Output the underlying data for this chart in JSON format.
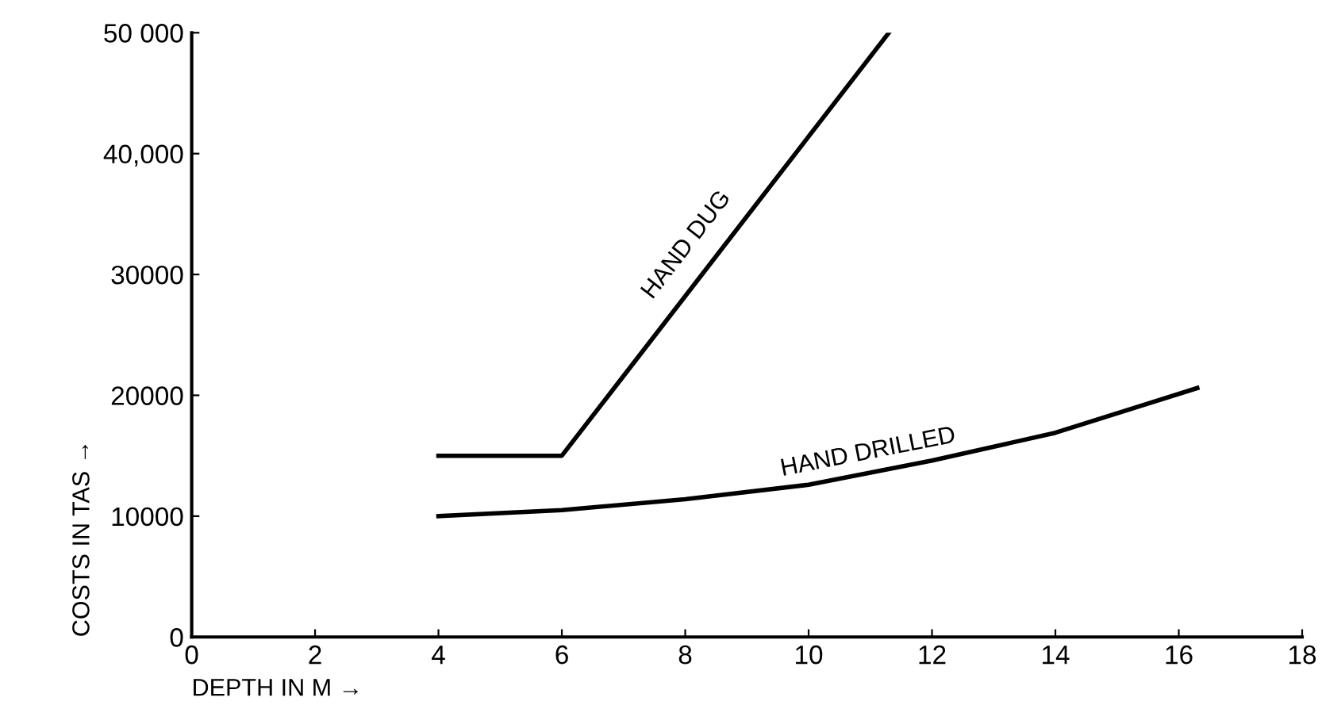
{
  "chart_data": {
    "type": "line",
    "xlabel": "DEPTH IN M →",
    "ylabel": "COSTS IN TAS →",
    "xlim": [
      0,
      18
    ],
    "xticks": [
      0,
      2,
      4,
      6,
      8,
      10,
      12,
      14,
      16,
      18
    ],
    "ylim": [
      0,
      50000
    ],
    "yticks": [
      0,
      {
        "value": 10000,
        "label": "10000"
      },
      {
        "value": 20000,
        "label": "20000"
      },
      {
        "value": 30000,
        "label": "30000"
      },
      {
        "value": 40000,
        "label": "40,000"
      },
      {
        "value": 50000,
        "label": "50 000"
      }
    ],
    "grid": false,
    "legend": false,
    "marker": "none",
    "line_style": "solid",
    "series": [
      {
        "name": "HAND DUG",
        "color": "#000000",
        "x": [
          4,
          6,
          11.3
        ],
        "values": [
          15000,
          15000,
          50000
        ]
      },
      {
        "name": "HAND DRILLED",
        "color": "#000000",
        "x": [
          4,
          6,
          8,
          10,
          12,
          14,
          16.3
        ],
        "values": [
          10000,
          10500,
          11400,
          12600,
          14600,
          16900,
          20600
        ]
      }
    ]
  }
}
